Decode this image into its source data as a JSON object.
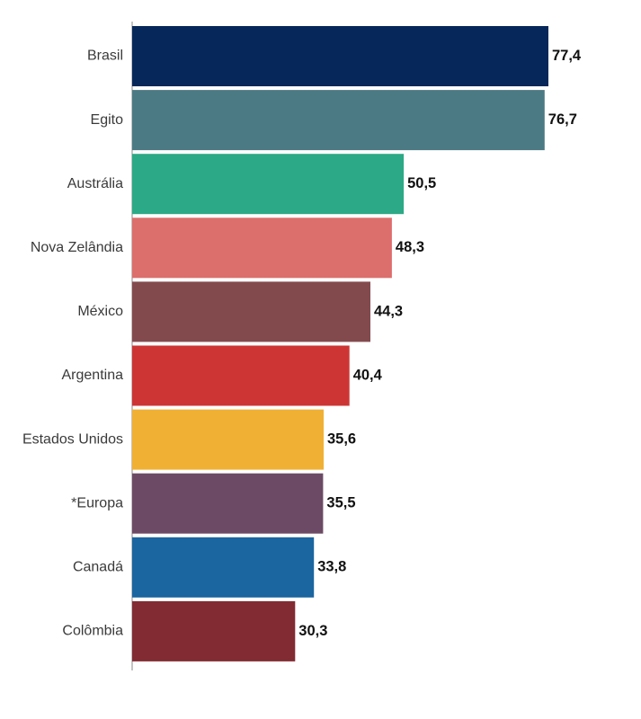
{
  "chart_data": {
    "type": "bar",
    "orientation": "horizontal",
    "categories": [
      "Brasil",
      "Egito",
      "Austrália",
      "Nova Zelândia",
      "México",
      "Argentina",
      "Estados Unidos",
      "*Europa",
      "Canadá",
      "Colômbia"
    ],
    "value_labels": [
      "77,4",
      "76,7",
      "50,5",
      "48,3",
      "44,3",
      "40,4",
      "35,6",
      "35,5",
      "33,8",
      "30,3"
    ],
    "values": [
      77.4,
      76.7,
      50.5,
      48.3,
      44.3,
      40.4,
      35.6,
      35.5,
      33.8,
      30.3
    ],
    "colors": [
      "#06275a",
      "#4c7a84",
      "#2ca986",
      "#dc6e6c",
      "#834a4e",
      "#cd3534",
      "#f0b033",
      "#6c4a65",
      "#1b65a0",
      "#822b33"
    ],
    "title": "",
    "xlabel": "",
    "ylabel": "",
    "xlim": [
      0,
      77.4
    ],
    "grid": false,
    "legend": "none"
  }
}
